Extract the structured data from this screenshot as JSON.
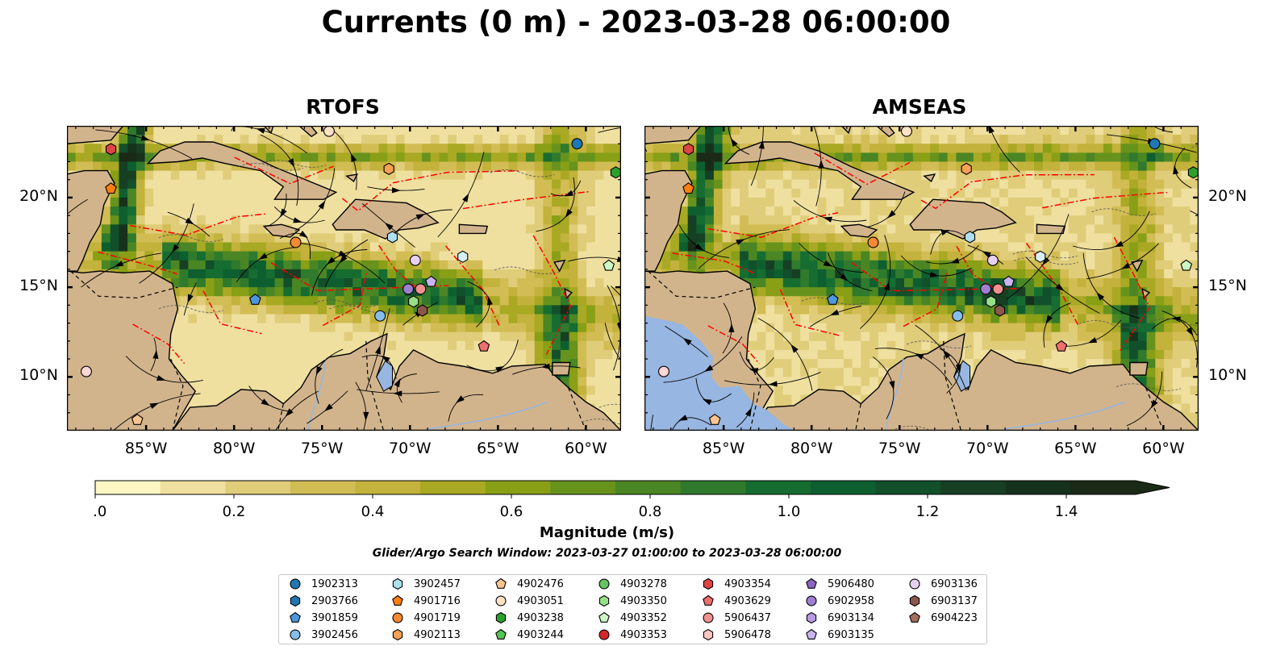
{
  "title": "Currents (0 m) - 2023-03-28 06:00:00",
  "panels": [
    {
      "title": "RTOFS",
      "ocean_type": "model"
    },
    {
      "title": "AMSEAS",
      "ocean_type": "model_with_pacific"
    }
  ],
  "map": {
    "lon_range": [
      -89.5,
      -58.0
    ],
    "lat_range": [
      7.0,
      24.0
    ],
    "x_ticks": [
      "85°W",
      "80°W",
      "75°W",
      "70°W",
      "65°W",
      "60°W"
    ],
    "y_ticks": [
      "10°N",
      "15°N",
      "20°N"
    ],
    "land_color": "#d2b48c",
    "pacific_color": "#97b6e1",
    "eez_color": "#ff0000"
  },
  "colorbar": {
    "label": "Magnitude (m/s)",
    "ticks": [
      "0.0",
      "0.2",
      "0.4",
      "0.6",
      "0.8",
      "1.0",
      "1.2",
      "1.4"
    ],
    "min": 0.0,
    "max": 1.5,
    "extend": "max",
    "colors": [
      "#fcf6c4",
      "#efe0a0",
      "#e0cd7a",
      "#d2bd55",
      "#c3b23b",
      "#a9a924",
      "#889f16",
      "#67931c",
      "#4a8624",
      "#2f7a2c",
      "#166d31",
      "#0e5f30",
      "#11502a",
      "#163f23",
      "#17321c",
      "#1b2a16"
    ]
  },
  "search_window": "Glider/Argo Search Window: 2023-03-27 01:00:00 to 2023-03-28 06:00:00",
  "platforms": [
    {
      "id": "1902313",
      "marker": "circle",
      "color": "#1f77b4",
      "lon": -60.5,
      "lat": 23.0
    },
    {
      "id": "2903766",
      "marker": "hexagon",
      "color": "#1f77b4",
      "lon": null,
      "lat": null
    },
    {
      "id": "3901859",
      "marker": "pentagon",
      "color": "#4c97e0",
      "lon": -78.8,
      "lat": 14.3
    },
    {
      "id": "3902456",
      "marker": "circle",
      "color": "#86bdea",
      "lon": -71.7,
      "lat": 13.4
    },
    {
      "id": "3902457",
      "marker": "hexagon",
      "color": "#aedff3",
      "lon": -71.0,
      "lat": 17.8
    },
    {
      "id": "4901716",
      "marker": "pentagon",
      "color": "#ff7f0e",
      "lon": -87.0,
      "lat": 20.5
    },
    {
      "id": "4901719",
      "marker": "circle",
      "color": "#f58a33",
      "lon": -76.5,
      "lat": 17.5
    },
    {
      "id": "4902113",
      "marker": "hexagon",
      "color": "#f7a155",
      "lon": -71.2,
      "lat": 21.6
    },
    {
      "id": "4902476",
      "marker": "pentagon",
      "color": "#ffc48f",
      "lon": -85.5,
      "lat": 7.6
    },
    {
      "id": "4903051",
      "marker": "circle",
      "color": "#ffe2c6",
      "lon": -74.6,
      "lat": 23.7
    },
    {
      "id": "4903238",
      "marker": "hexagon",
      "color": "#2ca02c",
      "lon": -58.3,
      "lat": 21.4
    },
    {
      "id": "4903244",
      "marker": "pentagon",
      "color": "#52c452",
      "lon": null,
      "lat": null
    },
    {
      "id": "4903278",
      "marker": "circle",
      "color": "#63c463",
      "lon": null,
      "lat": null
    },
    {
      "id": "4903350",
      "marker": "hexagon",
      "color": "#98df8a",
      "lon": -69.8,
      "lat": 14.2
    },
    {
      "id": "4903352",
      "marker": "pentagon",
      "color": "#ccf7c4",
      "lon": -58.7,
      "lat": 16.2
    },
    {
      "id": "4903353",
      "marker": "circle",
      "color": "#d62728",
      "lon": null,
      "lat": null
    },
    {
      "id": "4903354",
      "marker": "hexagon",
      "color": "#dd4444",
      "lon": -87.0,
      "lat": 22.7
    },
    {
      "id": "4903629",
      "marker": "pentagon",
      "color": "#ee6f6f",
      "lon": -65.8,
      "lat": 11.7
    },
    {
      "id": "5906437",
      "marker": "circle",
      "color": "#f28f8f",
      "lon": -69.4,
      "lat": 14.9
    },
    {
      "id": "5906478",
      "marker": "hexagon",
      "color": "#ffc4c4",
      "lon": null,
      "lat": null
    },
    {
      "id": "5906480",
      "marker": "pentagon",
      "color": "#8c65c2",
      "lon": null,
      "lat": null
    },
    {
      "id": "6902958",
      "marker": "circle",
      "color": "#9f7fd0",
      "lon": -70.1,
      "lat": 14.9
    },
    {
      "id": "6903134",
      "marker": "hexagon",
      "color": "#b89be2",
      "lon": null,
      "lat": null
    },
    {
      "id": "6903135",
      "marker": "pentagon",
      "color": "#c9b3f0",
      "lon": -68.8,
      "lat": 15.3
    },
    {
      "id": "6903136",
      "marker": "circle",
      "color": "#e8d0f3",
      "lon": -69.7,
      "lat": 16.5
    },
    {
      "id": "6903137",
      "marker": "hexagon",
      "color": "#8c564b",
      "lon": -69.3,
      "lat": 13.7
    },
    {
      "id": "6904223",
      "marker": "pentagon",
      "color": "#a36e5e",
      "lon": null,
      "lat": null
    }
  ],
  "extra_marks": [
    {
      "marker": "circle",
      "color": "#ffd6d6",
      "lon": -88.4,
      "lat": 10.3
    },
    {
      "marker": "hexagon",
      "color": "#d8eef8",
      "lon": -67.0,
      "lat": 16.7
    }
  ]
}
